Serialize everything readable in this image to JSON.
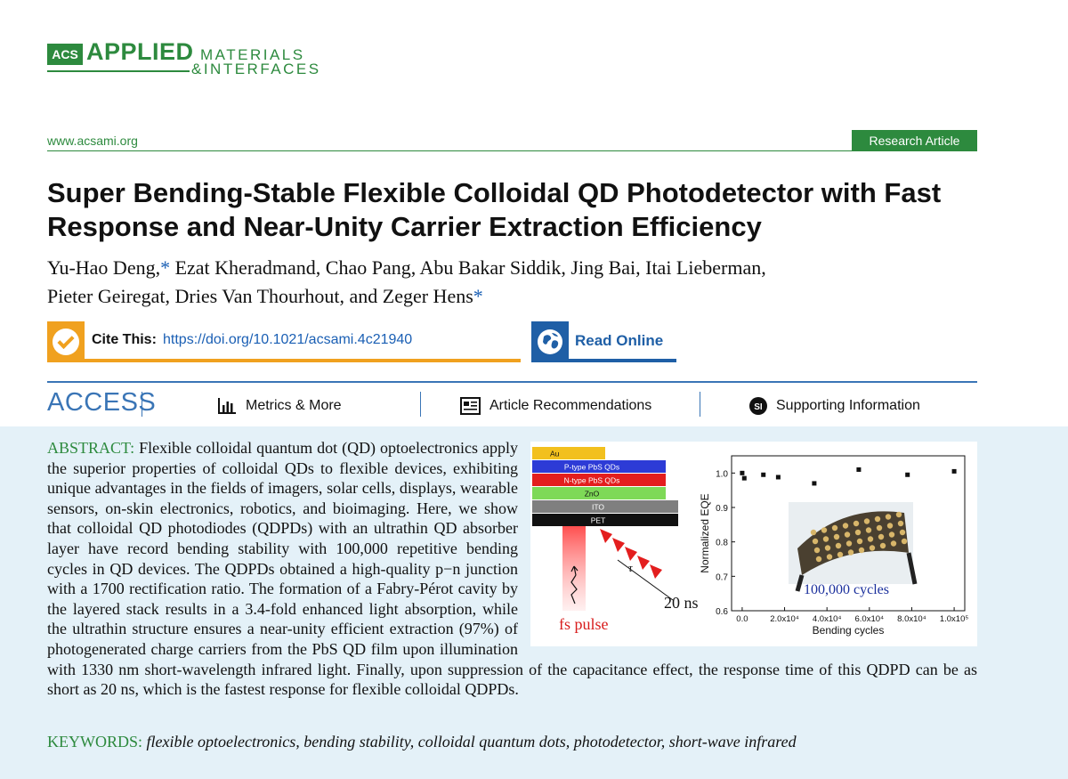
{
  "journal": {
    "logo_acs": "ACS",
    "logo_applied": "APPLIED",
    "logo_materials": "MATERIALS",
    "logo_interfaces": "&INTERFACES",
    "url": "www.acsami.org",
    "article_type": "Research Article"
  },
  "article": {
    "title": "Super Bending-Stable Flexible Colloidal QD Photodetector with Fast Response and Near-Unity Carrier Extraction Efficiency",
    "authors_line1": "Yu-Hao Deng,",
    "authors_line1_rest": " Ezat Kheradmand, Chao Pang, Abu Bakar Siddik, Jing Bai, Itai Lieberman,",
    "authors_line2": "Pieter Geiregat, Dries Van Thourhout, and Zeger Hens",
    "corresponding_mark": "*"
  },
  "cite": {
    "label": "Cite This:",
    "doi": "https://doi.org/10.1021/acsami.4c21940",
    "read_online": "Read Online"
  },
  "access_bar": {
    "access": "ACCESS",
    "metrics": "Metrics & More",
    "recommendations": "Article Recommendations",
    "supporting": "Supporting Information",
    "si_badge": "SI"
  },
  "abstract": {
    "label": "ABSTRACT:",
    "text": " Flexible colloidal quantum dot (QD) optoelectronics apply the superior properties of colloidal QDs to flexible devices, exhibiting unique advantages in the fields of imagers, solar cells, displays, wearable sensors, on-skin electronics, robotics, and bioimaging. Here, we show that colloidal QD photodiodes (QDPDs) with an ultrathin QD absorber layer have record bending stability with 100,000 repetitive bending cycles in QD devices. The QDPDs obtained a high-quality p−n junction with a 1700 rectification ratio. The formation of a Fabry-Pérot cavity by the layered stack results in a 3.4-fold enhanced light absorption, while the ultrathin structure ensures a near-unity efficient extraction (97%) of photogenerated charge carriers from the PbS QD film upon illumination with 1330 nm short-wavelength infrared light. Finally, upon suppression of the capacitance effect, the response time of this QDPD can be as short as 20 ns, which is the fastest response for flexible colloidal QDPDs."
  },
  "keywords": {
    "label": "KEYWORDS:",
    "text": "flexible optoelectronics, bending stability, colloidal quantum dots, photodetector, short-wave infrared"
  },
  "toc_graphic": {
    "layers": [
      "Au",
      "P-type PbS QDs",
      "N-type PbS QDs",
      "ZnO",
      "ITO",
      "PET"
    ],
    "layer_colors": [
      "#f2c01e",
      "#2d3bd6",
      "#e31e1e",
      "#7ed957",
      "#7f7f7f",
      "#111111"
    ],
    "tau": "τ",
    "time_label": "20 ns",
    "pulse_label": "fs pulse",
    "cycles_label": "100,000 cycles"
  },
  "chart_data": {
    "type": "scatter",
    "xlabel": "Bending cycles",
    "ylabel": "Normalized EQE",
    "xlim": [
      -5000,
      105000
    ],
    "ylim": [
      0.6,
      1.05
    ],
    "x_ticks": [
      "0.0",
      "2.0x10⁴",
      "4.0x10⁴",
      "6.0x10⁴",
      "8.0x10⁴",
      "1.0x10⁵"
    ],
    "y_ticks": [
      "0.6",
      "0.7",
      "0.8",
      "0.9",
      "1.0"
    ],
    "x_tick_values": [
      0,
      20000,
      40000,
      60000,
      80000,
      100000
    ],
    "y_tick_values": [
      0.6,
      0.7,
      0.8,
      0.9,
      1.0
    ],
    "x": [
      0,
      1000,
      10000,
      17000,
      34000,
      55000,
      78000,
      100000
    ],
    "y": [
      1.0,
      0.985,
      0.995,
      0.988,
      0.97,
      1.01,
      0.995,
      1.005
    ],
    "grid": false
  }
}
